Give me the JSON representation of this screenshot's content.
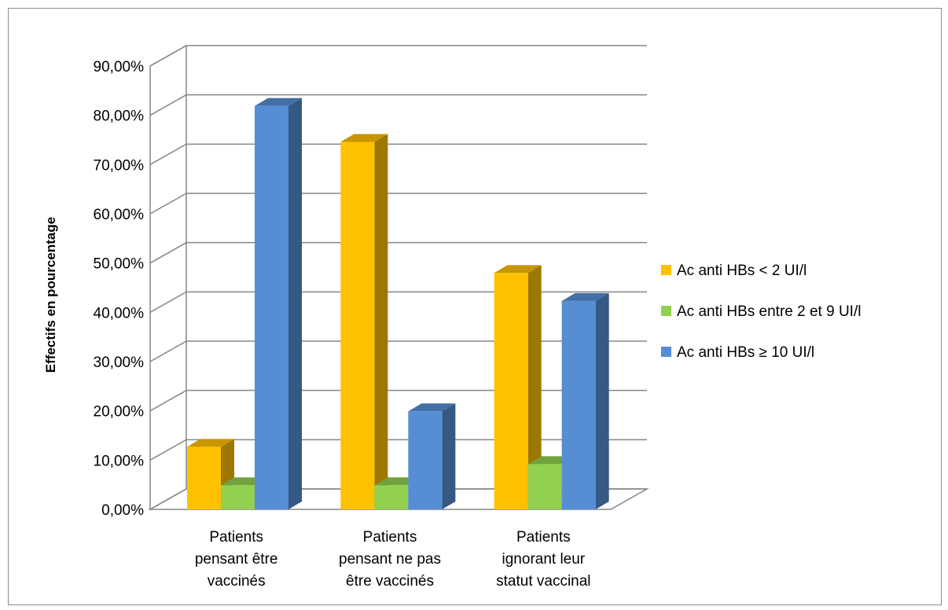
{
  "chart_data": {
    "type": "bar",
    "style": "3d-clustered-column",
    "title": "",
    "xlabel": "",
    "ylabel": "Effectifs en pourcentage",
    "ylim": [
      0,
      90
    ],
    "ytick_step": 10,
    "yticks": [
      "0,00%",
      "10,00%",
      "20,00%",
      "30,00%",
      "40,00%",
      "50,00%",
      "60,00%",
      "70,00%",
      "80,00%",
      "90,00%"
    ],
    "categories": [
      [
        "Patients",
        "pensant être",
        "vaccinés"
      ],
      [
        "Patients",
        "pensant ne pas",
        "être vaccinés"
      ],
      [
        "Patients",
        "ignorant leur",
        "statut vaccinal"
      ]
    ],
    "series": [
      {
        "name": "Ac anti HBs < 2 UI/l",
        "color": "#FFC000",
        "values": [
          12.7,
          74.6,
          48.0
        ]
      },
      {
        "name": "Ac anti HBs entre 2 et 9 UI/l",
        "color": "#92D050",
        "values": [
          4.9,
          4.9,
          9.2
        ]
      },
      {
        "name": "Ac anti HBs ≥ 10 UI/l",
        "color": "#558ED5",
        "values": [
          81.9,
          19.9,
          42.3
        ]
      }
    ],
    "grid": true,
    "legend_position": "right",
    "wall_color": "#ffffff",
    "gridline_color": "#868686"
  }
}
